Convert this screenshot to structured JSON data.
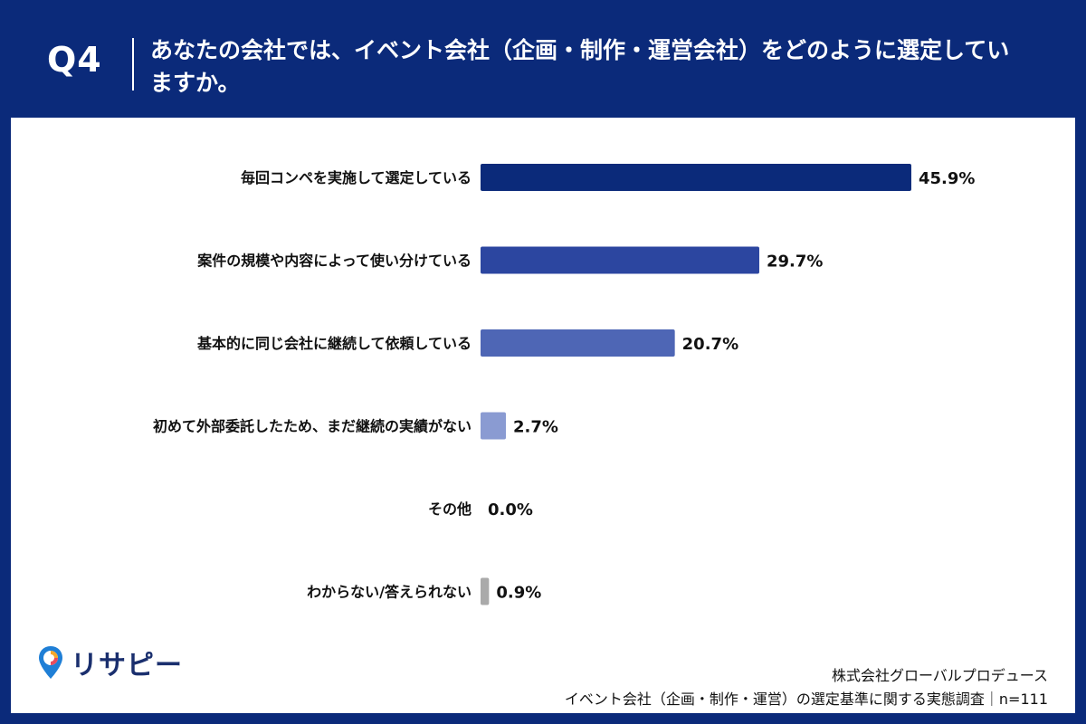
{
  "header": {
    "question_number": "Q4",
    "question_text": "あなたの会社では、イベント会社（企画・制作・運営会社）をどのように選定していますか。"
  },
  "chart_data": {
    "type": "bar",
    "orientation": "horizontal",
    "categories": [
      "毎回コンペを実施して選定している",
      "案件の規模や内容によって使い分けている",
      "基本的に同じ会社に継続して依頼している",
      "初めて外部委託したため、まだ継続の実績がない",
      "その他",
      "わからない/答えられない"
    ],
    "values": [
      45.9,
      29.7,
      20.7,
      2.7,
      0.0,
      0.9
    ],
    "value_labels": [
      "45.9%",
      "29.7%",
      "20.7%",
      "2.7%",
      "0.0%",
      "0.9%"
    ],
    "colors": [
      "#0b2a7a",
      "#2c46a0",
      "#4e66b5",
      "#8a9bd2",
      "#cccccc",
      "#aaaaaa"
    ],
    "xlim": [
      0,
      50
    ],
    "grid": false,
    "legend": "none"
  },
  "footer": {
    "logo_text": "リサピー",
    "company": "株式会社グローバルプロデュース",
    "survey": "イベント会社（企画・制作・運営）の選定基準に関する実態調査｜n=111"
  }
}
